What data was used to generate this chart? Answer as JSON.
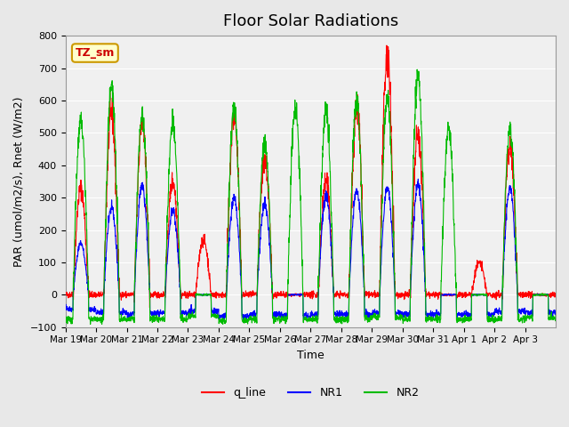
{
  "title": "Floor Solar Radiations",
  "ylabel": "PAR (umol/m2/s), Rnet (W/m2)",
  "xlabel": "Time",
  "ylim": [
    -100,
    800
  ],
  "yticks": [
    -100,
    0,
    100,
    200,
    300,
    400,
    500,
    600,
    700,
    800
  ],
  "bg_color": "#e8e8e8",
  "plot_bg_color": "#f0f0f0",
  "annotation_text": "TZ_sm",
  "annotation_bg": "#ffffcc",
  "annotation_border": "#cc9900",
  "annotation_text_color": "#cc0000",
  "line_colors": {
    "q_line": "#ff0000",
    "NR1": "#0000ff",
    "NR2": "#00bb00"
  },
  "legend_labels": [
    "q_line",
    "NR1",
    "NR2"
  ],
  "num_days": 16,
  "start_day_label": "Mar 19",
  "tick_labels": [
    "Mar 19",
    "Mar 20",
    "Mar 21",
    "Mar 22",
    "Mar 23",
    "Mar 24",
    "Mar 25",
    "Mar 26",
    "Mar 27",
    "Mar 28",
    "Mar 29",
    "Mar 30",
    "Mar 31",
    "Apr 1",
    "Apr 2",
    "Apr 3"
  ],
  "daily_peaks_q": [
    330,
    560,
    530,
    350,
    170,
    555,
    420,
    0,
    350,
    580,
    730,
    490,
    0,
    100,
    460,
    0
  ],
  "daily_peaks_NR1": [
    160,
    270,
    340,
    260,
    0,
    300,
    280,
    0,
    305,
    320,
    335,
    340,
    0,
    0,
    330,
    0
  ],
  "daily_peaks_NR2": [
    540,
    650,
    555,
    530,
    0,
    585,
    465,
    580,
    575,
    595,
    610,
    675,
    515,
    0,
    515,
    0
  ],
  "night_val_q": [
    0,
    0,
    0,
    0,
    0,
    0,
    0,
    0,
    0,
    0,
    0,
    0,
    0,
    0,
    0,
    0
  ],
  "night_val_NR1": [
    -45,
    -55,
    -60,
    -55,
    -50,
    -65,
    -60,
    -65,
    -60,
    -60,
    -55,
    -60,
    -60,
    -60,
    -50,
    -55
  ],
  "night_val_NR2": [
    -75,
    -75,
    -75,
    -75,
    -65,
    -80,
    -75,
    -75,
    -75,
    -75,
    -70,
    -75,
    -75,
    -75,
    -75,
    -70
  ],
  "points_per_day": 144
}
